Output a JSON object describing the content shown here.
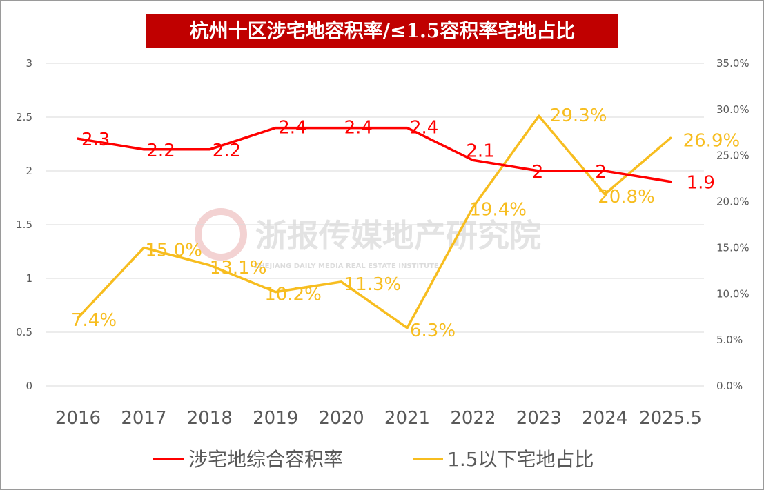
{
  "watermark": {
    "text": "浙报传媒地产研究院",
    "subtext": "ZHEJIANG DAILY MEDIA REAL ESTATE INSTITUTE"
  },
  "chart_data": {
    "type": "line",
    "title": "杭州十区涉宅地容积率/≤1.5容积率宅地占比",
    "categories": [
      "2016",
      "2017",
      "2018",
      "2019",
      "2020",
      "2021",
      "2022",
      "2023",
      "2024",
      "2025.5"
    ],
    "left_axis": {
      "ylim": [
        0,
        3
      ],
      "ticks": [
        "0",
        "0.5",
        "1",
        "1.5",
        "2",
        "2.5",
        "3"
      ]
    },
    "right_axis": {
      "ylim": [
        0,
        0.35
      ],
      "ticks": [
        "0.0%",
        "5.0%",
        "10.0%",
        "15.0%",
        "20.0%",
        "25.0%",
        "30.0%",
        "35.0%"
      ]
    },
    "grid": true,
    "legend_position": "bottom",
    "series": [
      {
        "name": "涉宅地综合容积率",
        "axis": "left",
        "color": "#ff0000",
        "values": [
          2.3,
          2.2,
          2.2,
          2.4,
          2.4,
          2.4,
          2.1,
          2.0,
          2.0,
          1.9
        ],
        "labels": [
          "2.3",
          "2.2",
          "2.2",
          "2.4",
          "2.4",
          "2.4",
          "2.1",
          "2",
          "2",
          "1.9"
        ]
      },
      {
        "name": "1.5以下宅地占比",
        "axis": "right",
        "color": "#f7bd1f",
        "values": [
          0.074,
          0.15,
          0.131,
          0.102,
          0.113,
          0.063,
          0.194,
          0.293,
          0.208,
          0.269
        ],
        "labels": [
          "7.4%",
          "15.0%",
          "13.1%",
          "10.2%",
          "11.3%",
          "6.3%",
          "19.4%",
          "29.3%",
          "20.8%",
          "26.9%"
        ]
      }
    ]
  }
}
